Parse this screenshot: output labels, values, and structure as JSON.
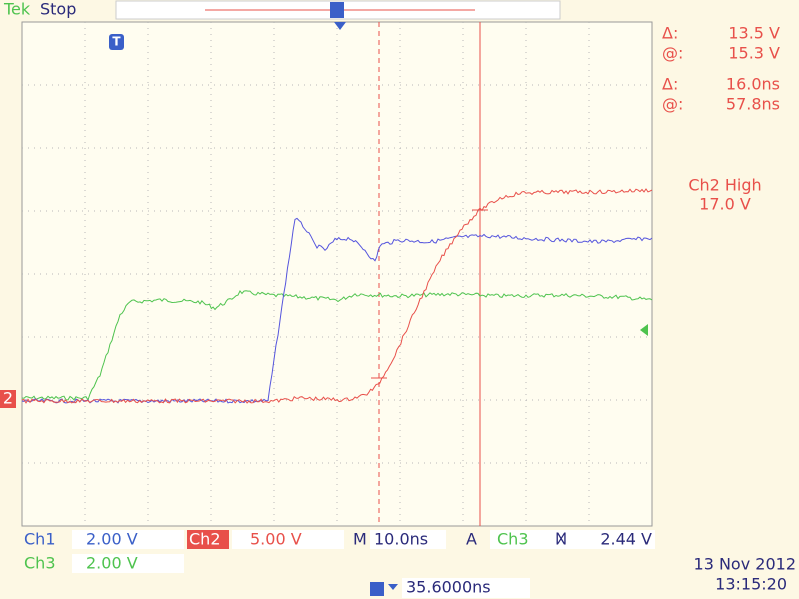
{
  "header": {
    "brand": "Tek",
    "status": "Stop"
  },
  "readouts": [
    {
      "symbol": "Δ:",
      "value": "13.5 V"
    },
    {
      "symbol": "@:",
      "value": "15.3 V"
    },
    {
      "symbol": "Δ:",
      "value": "16.0ns"
    },
    {
      "symbol": "@:",
      "value": "57.8ns"
    }
  ],
  "measurement": {
    "label": "Ch2 High",
    "value": "17.0 V"
  },
  "markers": {
    "trigger": "T",
    "ch2": "2"
  },
  "footer": {
    "ch1": {
      "name": "Ch1",
      "scale": "2.00 V"
    },
    "ch2": {
      "name": "Ch2",
      "scale": "5.00 V"
    },
    "ch3": {
      "name": "Ch3",
      "scale": "2.00 V"
    },
    "timebase": {
      "name": "M",
      "scale": "10.0ns"
    },
    "trigger": {
      "name": "A",
      "source": "Ch3",
      "slope": "Ⳮ",
      "level": "2.44 V"
    },
    "position": "35.6000ns",
    "date": "13 Nov 2012",
    "time": "13:15:20"
  }
}
